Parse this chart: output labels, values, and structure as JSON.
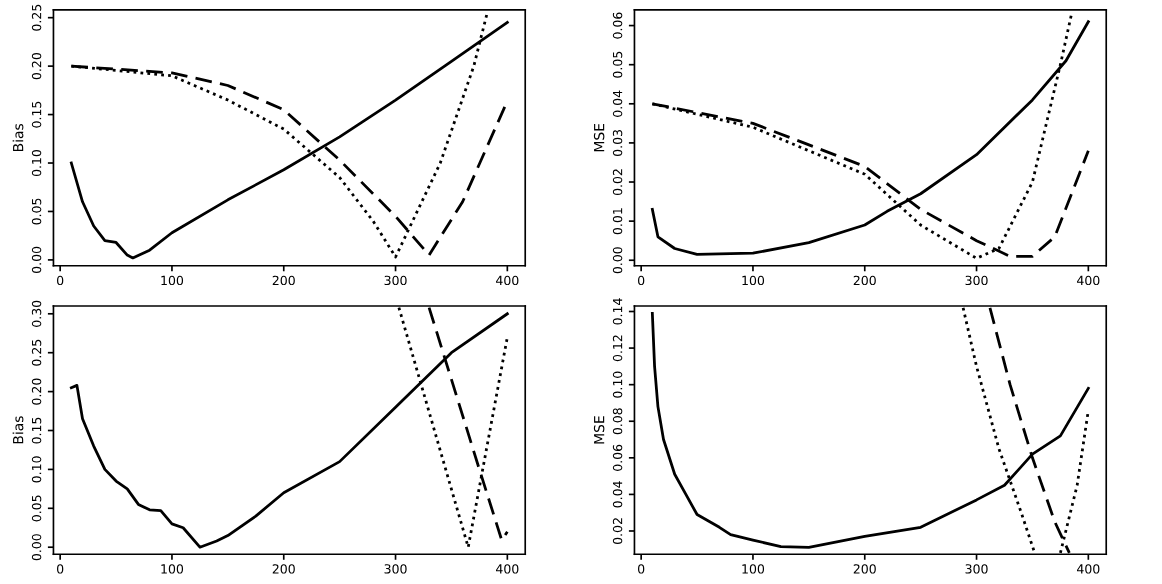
{
  "chart_data": [
    {
      "type": "line",
      "ylabel": "Bias",
      "xlim": [
        -6,
        416
      ],
      "xticks": [
        0,
        100,
        200,
        300,
        400
      ],
      "ylim": [
        -0.006,
        0.258
      ],
      "yticks": [
        {
          "value": 0,
          "label": "0.00"
        },
        {
          "value": 0.05,
          "label": "0.05"
        },
        {
          "value": 0.1,
          "label": "0.10"
        },
        {
          "value": 0.15,
          "label": "0.15"
        },
        {
          "value": 0.2,
          "label": "0.20"
        },
        {
          "value": 0.25,
          "label": "0.25"
        }
      ],
      "grid": false,
      "legend": false,
      "series": [
        {
          "color": "#000000",
          "line_style": "solid",
          "x": [
            10,
            20,
            30,
            40,
            50,
            60,
            65,
            80,
            100,
            150,
            200,
            250,
            300,
            350,
            400
          ],
          "values": [
            0.1,
            0.06,
            0.035,
            0.02,
            0.018,
            0.005,
            0.002,
            0.01,
            0.028,
            0.062,
            0.093,
            0.127,
            0.165,
            0.205,
            0.245
          ]
        },
        {
          "color": "#000000",
          "line_style": "dashed",
          "x": [
            10,
            100,
            150,
            200,
            250,
            300,
            330,
            360,
            400
          ],
          "values": [
            0.2,
            0.193,
            0.18,
            0.155,
            0.103,
            0.045,
            0.005,
            0.06,
            0.164
          ]
        },
        {
          "color": "#000000",
          "line_style": "dotted",
          "x": [
            10,
            100,
            150,
            200,
            250,
            280,
            300,
            340,
            370,
            382
          ],
          "values": [
            0.2,
            0.19,
            0.165,
            0.135,
            0.085,
            0.04,
            0.003,
            0.1,
            0.2,
            0.255
          ]
        }
      ]
    },
    {
      "type": "line",
      "ylabel": "MSE",
      "xlim": [
        -6,
        416
      ],
      "xticks": [
        0,
        100,
        200,
        300,
        400
      ],
      "ylim": [
        -0.0014,
        0.064
      ],
      "yticks": [
        {
          "value": 0,
          "label": "0.00"
        },
        {
          "value": 0.01,
          "label": "0.01"
        },
        {
          "value": 0.02,
          "label": "0.02"
        },
        {
          "value": 0.03,
          "label": "0.03"
        },
        {
          "value": 0.04,
          "label": "0.04"
        },
        {
          "value": 0.05,
          "label": "0.05"
        },
        {
          "value": 0.06,
          "label": "0.06"
        }
      ],
      "grid": false,
      "legend": false,
      "series": [
        {
          "color": "#000000",
          "line_style": "solid",
          "x": [
            10,
            15,
            30,
            50,
            100,
            150,
            200,
            220,
            250,
            300,
            350,
            380,
            400
          ],
          "values": [
            0.013,
            0.006,
            0.003,
            0.0015,
            0.0018,
            0.0045,
            0.009,
            0.0125,
            0.017,
            0.027,
            0.041,
            0.051,
            0.061
          ]
        },
        {
          "color": "#000000",
          "line_style": "dashed",
          "x": [
            10,
            100,
            200,
            250,
            300,
            330,
            350,
            370,
            400
          ],
          "values": [
            0.04,
            0.035,
            0.024,
            0.013,
            0.005,
            0.001,
            0.001,
            0.006,
            0.028
          ]
        },
        {
          "color": "#000000",
          "line_style": "dotted",
          "x": [
            10,
            100,
            200,
            250,
            300,
            320,
            350,
            375,
            385
          ],
          "values": [
            0.04,
            0.034,
            0.022,
            0.009,
            0.0005,
            0.003,
            0.02,
            0.05,
            0.063
          ]
        }
      ]
    },
    {
      "type": "line",
      "ylabel": "Bias",
      "xlim": [
        -6,
        416
      ],
      "xticks": [
        0,
        100,
        200,
        300,
        400
      ],
      "ylim": [
        -0.009,
        0.31
      ],
      "yticks": [
        {
          "value": 0,
          "label": "0.00"
        },
        {
          "value": 0.05,
          "label": "0.05"
        },
        {
          "value": 0.1,
          "label": "0.10"
        },
        {
          "value": 0.15,
          "label": "0.15"
        },
        {
          "value": 0.2,
          "label": "0.20"
        },
        {
          "value": 0.25,
          "label": "0.25"
        },
        {
          "value": 0.3,
          "label": "0.30"
        }
      ],
      "grid": false,
      "legend": false,
      "series": [
        {
          "color": "#000000",
          "line_style": "solid",
          "x": [
            10,
            15,
            20,
            30,
            40,
            50,
            60,
            70,
            80,
            90,
            100,
            110,
            125,
            140,
            150,
            175,
            200,
            250,
            300,
            350,
            400
          ],
          "values": [
            0.205,
            0.208,
            0.165,
            0.13,
            0.1,
            0.085,
            0.075,
            0.055,
            0.048,
            0.047,
            0.03,
            0.025,
            0.0,
            0.008,
            0.015,
            0.04,
            0.07,
            0.11,
            0.18,
            0.25,
            0.3
          ]
        },
        {
          "color": "#000000",
          "line_style": "dashed",
          "x": [
            330,
            375,
            395,
            400
          ],
          "values": [
            0.308,
            0.1,
            0.009,
            0.02
          ]
        },
        {
          "color": "#000000",
          "line_style": "dotted",
          "x": [
            303,
            365,
            400
          ],
          "values": [
            0.308,
            0.0,
            0.27
          ]
        }
      ]
    },
    {
      "type": "line",
      "ylabel": "MSE",
      "xlim": [
        -6,
        416
      ],
      "xticks": [
        0,
        100,
        200,
        300,
        400
      ],
      "ylim": [
        0.0073,
        0.143
      ],
      "yticks": [
        {
          "value": 0.02,
          "label": "0.02"
        },
        {
          "value": 0.04,
          "label": "0.04"
        },
        {
          "value": 0.06,
          "label": "0.06"
        },
        {
          "value": 0.08,
          "label": "0.08"
        },
        {
          "value": 0.1,
          "label": "0.10"
        },
        {
          "value": 0.12,
          "label": "0.12"
        },
        {
          "value": 0.14,
          "label": "0.14"
        }
      ],
      "grid": false,
      "legend": false,
      "series": [
        {
          "color": "#000000",
          "line_style": "solid",
          "x": [
            10,
            12,
            15,
            20,
            30,
            40,
            50,
            70,
            80,
            100,
            125,
            150,
            200,
            250,
            300,
            325,
            350,
            375,
            400
          ],
          "values": [
            0.139,
            0.11,
            0.088,
            0.07,
            0.051,
            0.04,
            0.029,
            0.022,
            0.018,
            0.015,
            0.0115,
            0.011,
            0.017,
            0.022,
            0.037,
            0.045,
            0.062,
            0.072,
            0.098
          ]
        },
        {
          "color": "#000000",
          "line_style": "dashed",
          "x": [
            312,
            330,
            350,
            370,
            383
          ],
          "values": [
            0.142,
            0.1,
            0.06,
            0.025,
            0.008
          ]
        },
        {
          "color": "#000000",
          "line_style": "dotted",
          "x": [
            288,
            300,
            320,
            340,
            352,
            365,
            375,
            390,
            400
          ],
          "values": [
            0.142,
            0.11,
            0.065,
            0.03,
            0.008,
            null,
            0.008,
            0.045,
            0.086
          ]
        }
      ]
    }
  ]
}
